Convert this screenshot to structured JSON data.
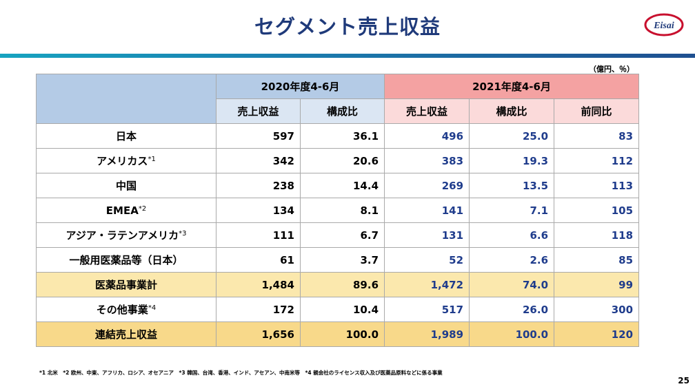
{
  "header": {
    "title": "セグメント売上収益",
    "logo_text": "Eisai"
  },
  "unit": "（億円、％）",
  "table": {
    "period_2020": "2020年度4-6月",
    "period_2021": "2021年度4-6月",
    "columns_2020": [
      "売上収益",
      "構成比"
    ],
    "columns_2021": [
      "売上収益",
      "構成比",
      "前同比"
    ],
    "rows": [
      {
        "label": "日本",
        "note": "",
        "rev2020": "597",
        "ratio2020": "36.1",
        "rev2021": "496",
        "ratio2021": "25.0",
        "yoy": "83"
      },
      {
        "label": "アメリカス",
        "note": "*1",
        "rev2020": "342",
        "ratio2020": "20.6",
        "rev2021": "383",
        "ratio2021": "19.3",
        "yoy": "112"
      },
      {
        "label": "中国",
        "note": "",
        "rev2020": "238",
        "ratio2020": "14.4",
        "rev2021": "269",
        "ratio2021": "13.5",
        "yoy": "113"
      },
      {
        "label": "EMEA",
        "note": "*2",
        "rev2020": "134",
        "ratio2020": "8.1",
        "rev2021": "141",
        "ratio2021": "7.1",
        "yoy": "105"
      },
      {
        "label": "アジア・ラテンアメリカ",
        "note": "*3",
        "rev2020": "111",
        "ratio2020": "6.7",
        "rev2021": "131",
        "ratio2021": "6.6",
        "yoy": "118"
      },
      {
        "label": "一般用医薬品等（日本）",
        "note": "",
        "rev2020": "61",
        "ratio2020": "3.7",
        "rev2021": "52",
        "ratio2021": "2.6",
        "yoy": "85"
      },
      {
        "label": "医薬品事業計",
        "note": "",
        "rev2020": "1,484",
        "ratio2020": "89.6",
        "rev2021": "1,472",
        "ratio2021": "74.0",
        "yoy": "99"
      },
      {
        "label": "その他事業",
        "note": "*4",
        "rev2020": "172",
        "ratio2020": "10.4",
        "rev2021": "517",
        "ratio2021": "26.0",
        "yoy": "300"
      },
      {
        "label": "連結売上収益",
        "note": "",
        "rev2020": "1,656",
        "ratio2020": "100.0",
        "rev2021": "1,989",
        "ratio2021": "100.0",
        "yoy": "120"
      }
    ]
  },
  "footnote": "*1 北米　*2 欧州、中東、アフリカ、ロシア、オセアニア　*3 韓国、台湾、香港、インド、アセアン、中南米等　*4 親会社のライセンス収入及び医薬品原料などに係る事業",
  "page_number": "25",
  "colors": {
    "title": "#1f3a7a",
    "header_2020": "#b4cbe6",
    "header_2021": "#f4a2a2",
    "subtotal": "#fbe8ad",
    "total": "#f8d98a",
    "value_2021": "#1f3c8c",
    "logo_red": "#c8102e"
  }
}
